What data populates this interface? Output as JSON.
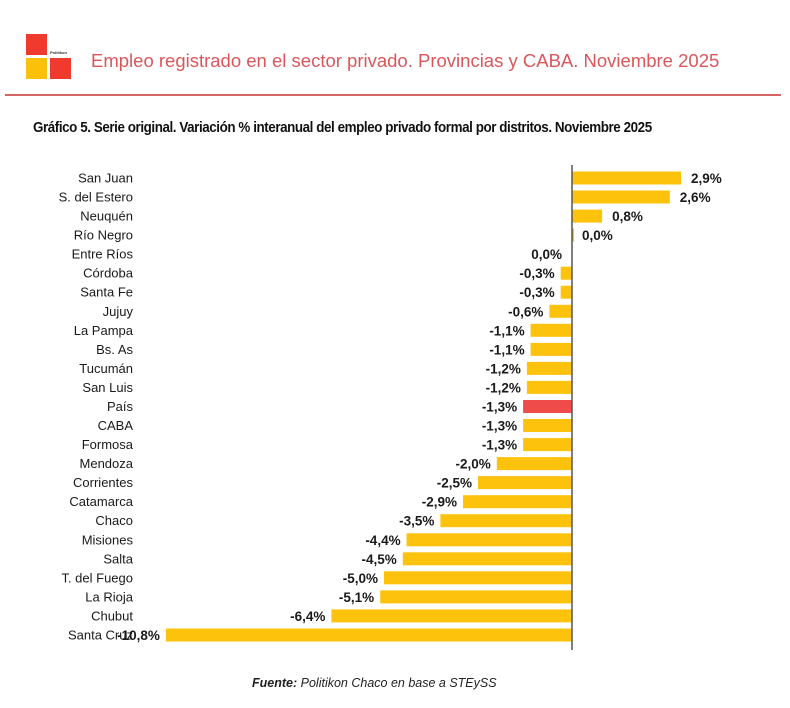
{
  "header": {
    "logo_text": "Politikon",
    "title": "Empleo registrado en el sector privado. Provincias y CABA. Noviembre 2025"
  },
  "source": {
    "prefix": "Fuente:",
    "text": "Politikon Chaco en base a STEySS"
  },
  "colors": {
    "bar": "#fdc20c",
    "highlight": "#f04b4b",
    "axis": "#555555",
    "header_text": "#d9575b",
    "logo_red": "#f03a2e",
    "logo_yellow": "#fbc10a"
  },
  "chart_data": {
    "type": "bar",
    "orientation": "horizontal",
    "title": "Gráfico 5. Serie original. Variación % interanual del empleo privado formal por distritos. Noviembre 2025",
    "xlabel": "",
    "ylabel": "",
    "xlim": [
      -10.8,
      2.9
    ],
    "grid": false,
    "legend": "none",
    "highlight_category": "País",
    "categories": [
      "San Juan",
      "S. del Estero",
      "Neuquén",
      "Río Negro",
      "Entre Ríos",
      "Córdoba",
      "Santa Fe",
      "Jujuy",
      "La Pampa",
      "Bs. As",
      "Tucumán",
      "San Luis",
      "País",
      "CABA",
      "Formosa",
      "Mendoza",
      "Corrientes",
      "Catamarca",
      "Chaco",
      "Misiones",
      "Salta",
      "T. del Fuego",
      "La Rioja",
      "Chubut",
      "Santa Cruz"
    ],
    "values": [
      2.9,
      2.6,
      0.8,
      0.0,
      0.0,
      -0.3,
      -0.3,
      -0.6,
      -1.1,
      -1.1,
      -1.2,
      -1.2,
      -1.3,
      -1.3,
      -1.3,
      -2.0,
      -2.5,
      -2.9,
      -3.5,
      -4.4,
      -4.5,
      -5.0,
      -5.1,
      -6.4,
      -10.8
    ],
    "value_labels": [
      "2,9%",
      "2,6%",
      "0,8%",
      "0,0%",
      "0,0%",
      "-0,3%",
      "-0,3%",
      "-0,6%",
      "-1,1%",
      "-1,1%",
      "-1,2%",
      "-1,2%",
      "-1,3%",
      "-1,3%",
      "-1,3%",
      "-2,0%",
      "-2,5%",
      "-2,9%",
      "-3,5%",
      "-4,4%",
      "-4,5%",
      "-5,0%",
      "-5,1%",
      "-6,4%",
      "-10,8%"
    ]
  }
}
